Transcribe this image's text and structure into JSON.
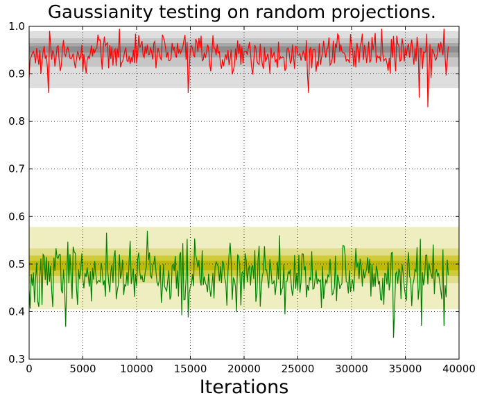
{
  "chart_data": {
    "type": "line",
    "title": "Gaussianity testing on random projections.",
    "xlabel": "Iterations",
    "ylabel": "",
    "xlim": [
      0,
      40000
    ],
    "ylim": [
      0.3,
      1.0
    ],
    "grid": true,
    "xticks": [
      "0",
      "5000",
      "10000",
      "15000",
      "20000",
      "25000",
      "30000",
      "35000",
      "40000"
    ],
    "yticks": [
      "0.3",
      "0.4",
      "0.5",
      "0.6",
      "0.7",
      "0.8",
      "0.9",
      "1.0"
    ],
    "bands": [
      {
        "group": "red",
        "from": 0.87,
        "to": 0.99,
        "color": "#dedede"
      },
      {
        "group": "red",
        "from": 0.915,
        "to": 0.975,
        "color": "#c6c6c6"
      },
      {
        "group": "red",
        "from": 0.935,
        "to": 0.965,
        "color": "#a8a8a8"
      },
      {
        "group": "red",
        "from": 0.945,
        "to": 0.958,
        "color": "#8f8f8f"
      },
      {
        "group": "green",
        "from": 0.405,
        "to": 0.578,
        "color": "#efeec1"
      },
      {
        "group": "green",
        "from": 0.46,
        "to": 0.533,
        "color": "#e0de8a"
      },
      {
        "group": "green",
        "from": 0.475,
        "to": 0.518,
        "color": "#cfcb3c"
      },
      {
        "group": "green",
        "from": 0.487,
        "to": 0.507,
        "color": "#bfba0a"
      }
    ],
    "series": [
      {
        "color": "#ff0000",
        "start": 0,
        "end": 39000,
        "base": 0.943,
        "amp": 0.033,
        "min": 0.83,
        "max": 0.995,
        "seed": 7,
        "spikes": [
          [
            1800,
            0.86
          ],
          [
            14800,
            0.86
          ],
          [
            26000,
            0.86
          ],
          [
            37100,
            0.83
          ],
          [
            8400,
            0.995
          ],
          [
            32800,
            0.995
          ],
          [
            36300,
            0.85
          ]
        ]
      },
      {
        "color": "#008000",
        "start": 0,
        "end": 39000,
        "base": 0.475,
        "amp": 0.058,
        "min": 0.345,
        "max": 0.57,
        "seed": 13,
        "spikes": [
          [
            3400,
            0.368
          ],
          [
            14800,
            0.388
          ],
          [
            33900,
            0.345
          ],
          [
            11000,
            0.57
          ],
          [
            14700,
            0.553
          ],
          [
            36500,
            0.37
          ],
          [
            38600,
            0.37
          ]
        ]
      }
    ]
  }
}
